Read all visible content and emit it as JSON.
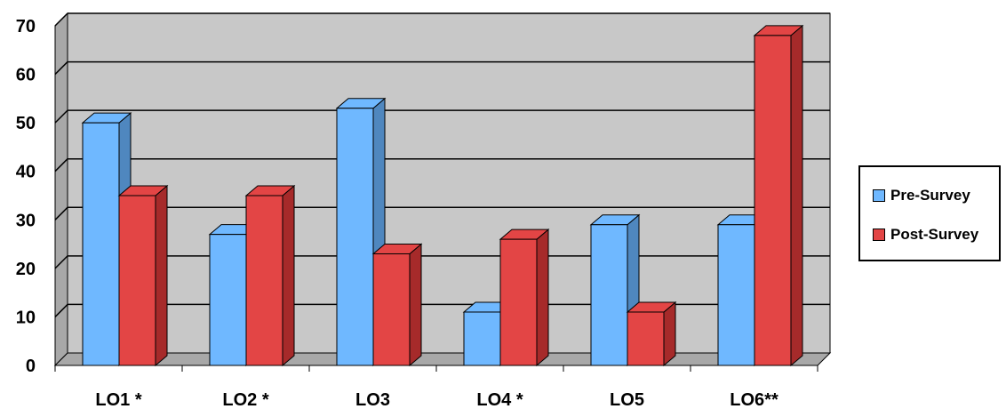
{
  "chart_data": {
    "type": "bar",
    "title": "",
    "xlabel": "",
    "ylabel": "",
    "categories": [
      "LO1 *",
      "LO2 *",
      "LO3",
      "LO4 *",
      "LO5",
      "LO6**"
    ],
    "series": [
      {
        "name": "Pre-Survey",
        "values": [
          50,
          27,
          53,
          11,
          29,
          29
        ],
        "color": "#6fb8ff",
        "side_color": "#4f87bf"
      },
      {
        "name": "Post-Survey",
        "values": [
          35,
          35,
          23,
          26,
          11,
          68
        ],
        "color": "#e34545",
        "side_color": "#a62a2a"
      }
    ],
    "ylim": [
      0,
      70
    ],
    "yticks": [
      "0",
      "10",
      "20",
      "30",
      "40",
      "50",
      "60",
      "70"
    ],
    "grid": true,
    "legend_position": "right",
    "plot_background": "#c8c8c8"
  }
}
